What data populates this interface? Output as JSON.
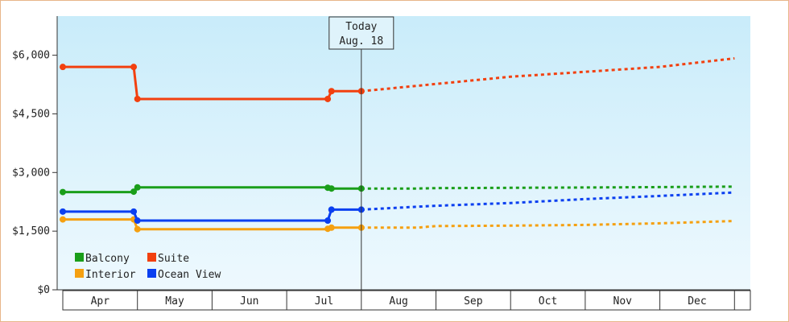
{
  "chart_data": {
    "type": "line",
    "title": "",
    "xlabel": "",
    "ylabel": "",
    "ylim": [
      0,
      7000
    ],
    "yticks": [
      {
        "value": 0,
        "label": "$0"
      },
      {
        "value": 1500,
        "label": "$1,500"
      },
      {
        "value": 3000,
        "label": "$3,000"
      },
      {
        "value": 4500,
        "label": "$4,500"
      },
      {
        "value": 6000,
        "label": "$6,000"
      }
    ],
    "months": [
      "Apr",
      "May",
      "Jun",
      "Jul",
      "Aug",
      "Sep",
      "Oct",
      "Nov",
      "Dec"
    ],
    "today": {
      "label_line1": "Today",
      "label_line2": "Aug. 18",
      "month_pos": 4.0
    },
    "grid": false,
    "legend_position": "bottom-left",
    "series": [
      {
        "name": "Balcony",
        "color": "#1a9e1a",
        "history": [
          [
            0.0,
            2500
          ],
          [
            0.95,
            2500
          ],
          [
            0.95,
            2510
          ],
          [
            1.0,
            2620
          ],
          [
            3.55,
            2620
          ],
          [
            3.55,
            2610
          ],
          [
            3.6,
            2590
          ],
          [
            4.0,
            2590
          ]
        ],
        "markers": [
          [
            0.0,
            2500
          ],
          [
            0.95,
            2510
          ],
          [
            1.0,
            2620
          ],
          [
            3.55,
            2610
          ],
          [
            3.6,
            2590
          ],
          [
            4.0,
            2590
          ]
        ],
        "forecast": [
          [
            4.0,
            2590
          ],
          [
            4.75,
            2590
          ],
          [
            5.0,
            2600
          ],
          [
            7.5,
            2620
          ],
          [
            9.0,
            2640
          ]
        ]
      },
      {
        "name": "Suite",
        "color": "#f2400f",
        "history": [
          [
            0.0,
            5700
          ],
          [
            0.95,
            5700
          ],
          [
            0.95,
            5700
          ],
          [
            1.0,
            4880
          ],
          [
            3.55,
            4880
          ],
          [
            3.55,
            4880
          ],
          [
            3.6,
            5080
          ],
          [
            4.0,
            5080
          ]
        ],
        "markers": [
          [
            0.0,
            5700
          ],
          [
            0.95,
            5700
          ],
          [
            1.0,
            4880
          ],
          [
            3.55,
            4880
          ],
          [
            3.6,
            5080
          ],
          [
            4.0,
            5080
          ]
        ],
        "forecast": [
          [
            4.0,
            5080
          ],
          [
            6.0,
            5450
          ],
          [
            8.0,
            5700
          ],
          [
            9.0,
            5920
          ]
        ]
      },
      {
        "name": "Interior",
        "color": "#f5a010",
        "history": [
          [
            0.0,
            1800
          ],
          [
            0.95,
            1800
          ],
          [
            0.95,
            1800
          ],
          [
            1.0,
            1550
          ],
          [
            3.55,
            1550
          ],
          [
            3.55,
            1560
          ],
          [
            3.6,
            1590
          ],
          [
            4.0,
            1590
          ]
        ],
        "markers": [
          [
            0.0,
            1800
          ],
          [
            0.95,
            1800
          ],
          [
            1.0,
            1550
          ],
          [
            3.55,
            1560
          ],
          [
            3.6,
            1590
          ],
          [
            4.0,
            1590
          ]
        ],
        "forecast": [
          [
            4.0,
            1590
          ],
          [
            4.75,
            1590
          ],
          [
            5.0,
            1630
          ],
          [
            6.0,
            1640
          ],
          [
            7.0,
            1660
          ],
          [
            8.0,
            1700
          ],
          [
            9.0,
            1760
          ]
        ]
      },
      {
        "name": "Ocean View",
        "color": "#0a3ff0",
        "history": [
          [
            0.0,
            2000
          ],
          [
            0.95,
            2000
          ],
          [
            0.95,
            2000
          ],
          [
            1.0,
            1770
          ],
          [
            3.55,
            1770
          ],
          [
            3.55,
            1770
          ],
          [
            3.6,
            2050
          ],
          [
            4.0,
            2050
          ]
        ],
        "markers": [
          [
            0.0,
            2000
          ],
          [
            0.95,
            2000
          ],
          [
            1.0,
            1770
          ],
          [
            3.55,
            1770
          ],
          [
            3.6,
            2050
          ],
          [
            4.0,
            2050
          ]
        ],
        "forecast": [
          [
            4.0,
            2050
          ],
          [
            5.0,
            2150
          ],
          [
            6.0,
            2220
          ],
          [
            7.0,
            2320
          ],
          [
            8.0,
            2400
          ],
          [
            9.0,
            2490
          ]
        ]
      }
    ],
    "legend": [
      {
        "name": "Balcony",
        "color": "#1a9e1a"
      },
      {
        "name": "Suite",
        "color": "#f2400f"
      },
      {
        "name": "Interior",
        "color": "#f5a010"
      },
      {
        "name": "Ocean View",
        "color": "#0a3ff0"
      }
    ]
  }
}
